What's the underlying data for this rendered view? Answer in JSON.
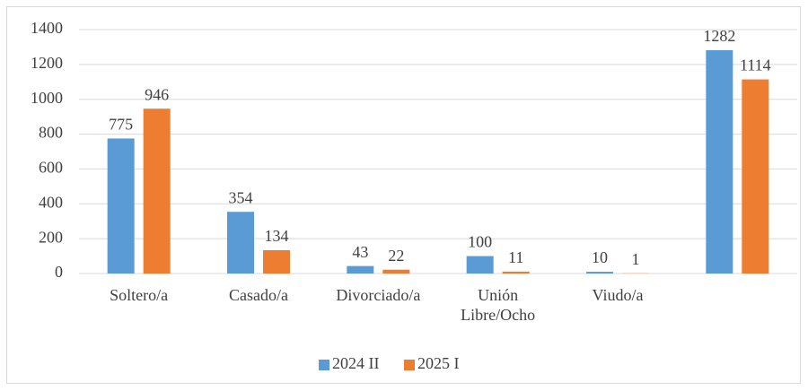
{
  "chart_data": {
    "type": "bar",
    "categories": [
      "Soltero/a",
      "Casado/a",
      "Divorciado/a",
      "Unión Libre/Ocho",
      "Viudo/a",
      null
    ],
    "series": [
      {
        "name": "2024 II",
        "color": "#5b9bd5",
        "values": [
          775,
          354,
          43,
          100,
          10,
          1282
        ]
      },
      {
        "name": "2025 I",
        "color": "#ed7d31",
        "values": [
          946,
          134,
          22,
          11,
          1,
          1114
        ]
      }
    ],
    "ylim": [
      0,
      1400
    ],
    "yticks": [
      0,
      200,
      400,
      600,
      800,
      1000,
      1200,
      1400
    ],
    "grid": true,
    "legend": "bottom"
  }
}
